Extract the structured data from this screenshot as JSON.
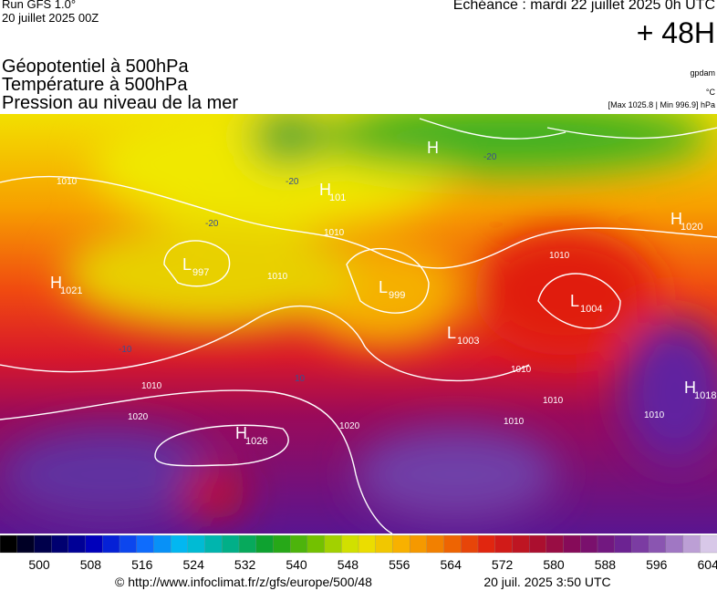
{
  "header": {
    "run": "Run GFS 1.0°",
    "run_date": "20 juillet 2025 00Z",
    "echeance": "Echéance : mardi 22 juillet 2025 0h UTC",
    "lead": "+ 48H"
  },
  "titles": [
    "Géopotentiel à 500hPa",
    "Température à 500hPa",
    "Pression au niveau de la mer"
  ],
  "units": {
    "geopotential": "gpdam",
    "temperature": "°C",
    "pressure": "[Max 1025.8 | Min 996.9] hPa"
  },
  "pressure_centers": [
    {
      "letter": "H",
      "value": "1021"
    },
    {
      "letter": "L",
      "value": "997"
    },
    {
      "letter": "H",
      "value": "1026"
    },
    {
      "letter": "H",
      "value": "1020"
    },
    {
      "letter": "L",
      "value": "999"
    },
    {
      "letter": "L",
      "value": "1003"
    },
    {
      "letter": "L",
      "value": "1004"
    },
    {
      "letter": "H",
      "value": "1018"
    },
    {
      "letter": "H",
      "value": "101"
    },
    {
      "letter": "H",
      "value": null
    }
  ],
  "contour_labels": [
    "1010",
    "1010",
    "1010",
    "1010",
    "1020",
    "1020",
    "1010",
    "1010",
    "1010",
    "1010",
    "1010",
    "-20",
    "-20",
    "-20",
    "-10",
    "10"
  ],
  "colorbar": {
    "labels": [
      "500",
      "508",
      "516",
      "524",
      "532",
      "540",
      "548",
      "556",
      "564",
      "572",
      "580",
      "588",
      "596",
      "604"
    ]
  },
  "footer": {
    "url": "© http://www.infoclimat.fr/z/gfs/europe/500/48",
    "timestamp": "20 juil. 2025  3:50 UTC"
  }
}
